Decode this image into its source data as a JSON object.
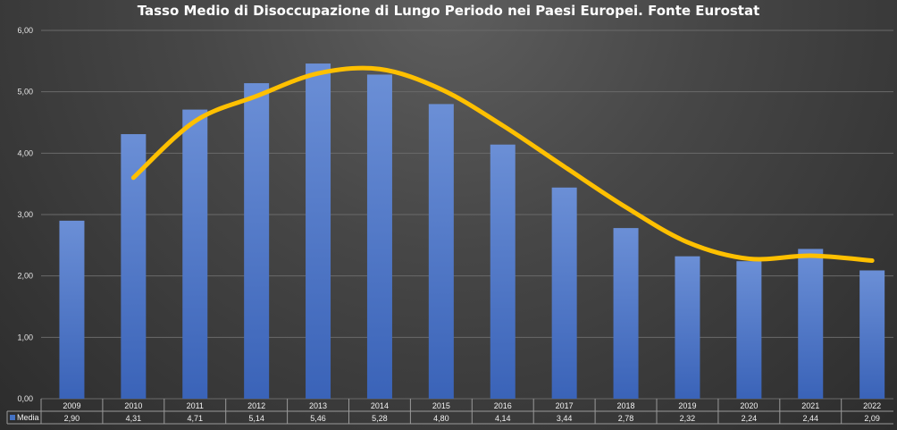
{
  "chart_data": {
    "type": "bar",
    "title": "Tasso Medio di Disoccupazione di Lungo Periodo nei Paesi Europei. Fonte Eurostat",
    "categories": [
      "2009",
      "2010",
      "2011",
      "2012",
      "2013",
      "2014",
      "2015",
      "2016",
      "2017",
      "2018",
      "2019",
      "2020",
      "2021",
      "2022"
    ],
    "series": [
      {
        "name": "Media",
        "type": "bar",
        "values": [
          2.9,
          4.31,
          4.71,
          5.14,
          5.46,
          5.28,
          4.8,
          4.14,
          3.44,
          2.78,
          2.32,
          2.24,
          2.44,
          2.09
        ],
        "labels": [
          "2,90",
          "4,31",
          "4,71",
          "5,14",
          "5,46",
          "5,28",
          "4,80",
          "4,14",
          "3,44",
          "2,78",
          "2,32",
          "2,24",
          "2,44",
          "2,09"
        ]
      },
      {
        "type": "line",
        "values": [
          null,
          3.6,
          4.52,
          4.93,
          5.3,
          5.37,
          5.04,
          4.45,
          3.78,
          3.12,
          2.55,
          2.28,
          2.33,
          2.25
        ]
      }
    ],
    "ylim": [
      0,
      6
    ],
    "yticks": [
      "0,00",
      "1,00",
      "2,00",
      "3,00",
      "4,00",
      "5,00",
      "6,00"
    ],
    "grid": true,
    "legend": "data-table",
    "colors": {
      "bar": "#4472c4",
      "bar_light": "#6b8fd6",
      "line": "#ffc000",
      "grid": "#6a6a6a",
      "text": "#f2f2f2"
    }
  }
}
